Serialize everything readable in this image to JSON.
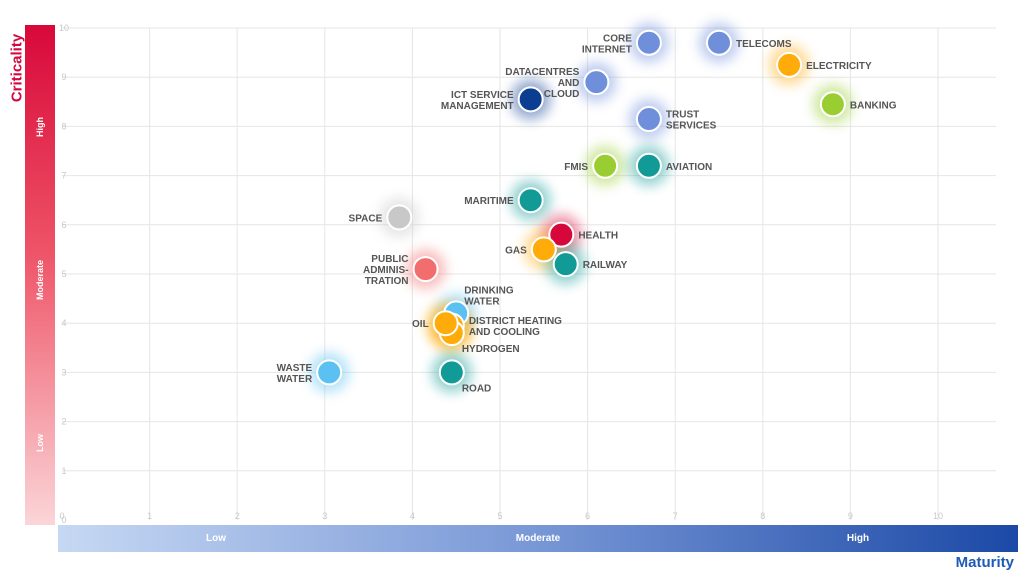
{
  "chart_data": {
    "type": "scatter",
    "xlabel": "Maturity",
    "ylabel": "Criticality",
    "xlim": [
      0,
      11
    ],
    "ylim": [
      0,
      10
    ],
    "x_ticks": [
      "0",
      "1",
      "2",
      "3",
      "4",
      "5",
      "6",
      "7",
      "8",
      "9",
      "10"
    ],
    "y_ticks": [
      "0",
      "1",
      "2",
      "3",
      "4",
      "5",
      "6",
      "7",
      "8",
      "9",
      "10"
    ],
    "grid": true,
    "x_levels": [
      "Low",
      "Moderate",
      "High"
    ],
    "y_levels": [
      "Low",
      "Moderate",
      "High"
    ],
    "colors": {
      "light_blue": "#5bc0f2",
      "medium_blue": "#6f8fdb",
      "dark_blue": "#0b3d91",
      "teal": "#119a96",
      "orange": "#ffab0a",
      "green": "#9acd32",
      "red": "#d6083b",
      "salmon": "#f26d6d",
      "grey": "#c8c8c8"
    },
    "points": [
      {
        "label": [
          "CORE",
          "INTERNET"
        ],
        "x": 6.7,
        "y": 9.7,
        "color": "medium_blue",
        "anchor": "left"
      },
      {
        "label": [
          "TELECOMS"
        ],
        "x": 7.5,
        "y": 9.7,
        "color": "medium_blue",
        "anchor": "right"
      },
      {
        "label": [
          "ELECTRICITY"
        ],
        "x": 8.3,
        "y": 9.25,
        "color": "orange",
        "anchor": "right"
      },
      {
        "label": [
          "DATACENTRES",
          "AND",
          "CLOUD"
        ],
        "x": 6.1,
        "y": 8.9,
        "color": "medium_blue",
        "anchor": "left"
      },
      {
        "label": [
          "ICT SERVICE",
          "MANAGEMENT"
        ],
        "x": 5.35,
        "y": 8.55,
        "color": "dark_blue",
        "anchor": "left"
      },
      {
        "label": [
          "BANKING"
        ],
        "x": 8.8,
        "y": 8.45,
        "color": "green",
        "anchor": "right"
      },
      {
        "label": [
          "TRUST",
          "SERVICES"
        ],
        "x": 6.7,
        "y": 8.15,
        "color": "medium_blue",
        "anchor": "right"
      },
      {
        "label": [
          "FMIS"
        ],
        "x": 6.2,
        "y": 7.2,
        "color": "green",
        "anchor": "left"
      },
      {
        "label": [
          "AVIATION"
        ],
        "x": 6.7,
        "y": 7.2,
        "color": "teal",
        "anchor": "right"
      },
      {
        "label": [
          "MARITIME"
        ],
        "x": 5.35,
        "y": 6.5,
        "color": "teal",
        "anchor": "left"
      },
      {
        "label": [
          "SPACE"
        ],
        "x": 3.85,
        "y": 6.15,
        "color": "grey",
        "anchor": "left"
      },
      {
        "label": [
          "HEALTH"
        ],
        "x": 5.7,
        "y": 5.8,
        "color": "red",
        "anchor": "right"
      },
      {
        "label": [
          "GAS"
        ],
        "x": 5.5,
        "y": 5.5,
        "color": "orange",
        "anchor": "left"
      },
      {
        "label": [
          "RAILWAY"
        ],
        "x": 5.75,
        "y": 5.2,
        "color": "teal",
        "anchor": "right"
      },
      {
        "label": [
          "PUBLIC",
          "ADMINIS-",
          "TRATION"
        ],
        "x": 4.15,
        "y": 5.1,
        "color": "salmon",
        "anchor": "left"
      },
      {
        "label": [
          "DRINKING",
          "WATER"
        ],
        "x": 4.5,
        "y": 4.2,
        "color": "light_blue",
        "anchor": "right-up"
      },
      {
        "label": [
          "DISTRICT HEATING",
          "AND COOLING"
        ],
        "x": 4.45,
        "y": 3.95,
        "color": "orange",
        "anchor": "right"
      },
      {
        "label": [
          "HYDROGEN"
        ],
        "x": 4.45,
        "y": 3.8,
        "color": "orange",
        "anchor": "right-down"
      },
      {
        "label": [
          "OIL"
        ],
        "x": 4.38,
        "y": 4.0,
        "color": "orange",
        "anchor": "left"
      },
      {
        "label": [
          "WASTE",
          "WATER"
        ],
        "x": 3.05,
        "y": 3.0,
        "color": "light_blue",
        "anchor": "left"
      },
      {
        "label": [
          "ROAD"
        ],
        "x": 4.45,
        "y": 3.0,
        "color": "teal",
        "anchor": "right-down"
      }
    ]
  }
}
